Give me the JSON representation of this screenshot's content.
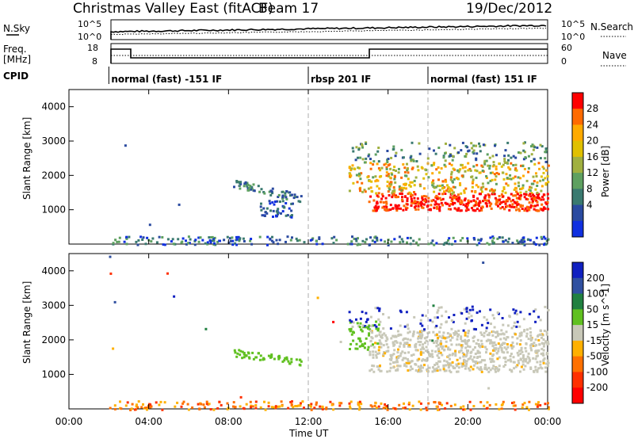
{
  "header": {
    "station": "Christmas Valley East (fitACF)",
    "beam": "Beam 17",
    "date": "19/Dec/2012"
  },
  "left_labels": {
    "nsky": "N.Sky",
    "freq_line1": "Freq.",
    "freq_line2": "[MHz]",
    "cpid": "CPID"
  },
  "right_labels": {
    "nsearch": "N.Search",
    "nave": "Nave"
  },
  "noise_panel": {
    "y_ticks_left": [
      "10^5",
      "10^0"
    ],
    "y_ticks_right": [
      "10^5",
      "10^0"
    ]
  },
  "freq_panel": {
    "y_ticks_left": [
      "18",
      "8"
    ],
    "y_ticks_right": [
      "60",
      "0"
    ]
  },
  "cpid_segments": [
    {
      "label": "normal (fast) -151 IF",
      "start_hour": 2.0
    },
    {
      "label": "rbsp 201 IF",
      "start_hour": 12.0
    },
    {
      "label": "normal (fast) 151 IF",
      "start_hour": 18.0
    }
  ],
  "chart_data": [
    {
      "type": "heatmap",
      "panel": "power",
      "ylabel": "Slant Range [km]",
      "yticks": [
        "1000",
        "2000",
        "3000",
        "4000"
      ],
      "colorbar_label": "Power [dB]",
      "colorbar_ticks": [
        "28",
        "24",
        "20",
        "16",
        "12",
        "8",
        "4"
      ],
      "colorbar_colors": [
        "#ff0000",
        "#ff6a00",
        "#ffaa00",
        "#e0c000",
        "#a0b040",
        "#5ea060",
        "#3a7a70",
        "#2a4aa0",
        "#1030e0"
      ]
    },
    {
      "type": "heatmap",
      "panel": "velocity",
      "ylabel": "Slant Range [km]",
      "yticks": [
        "1000",
        "2000",
        "3000",
        "4000"
      ],
      "colorbar_label": "Velocity [m s^-1]",
      "colorbar_ticks": [
        "200",
        "100",
        "50",
        "15",
        "-15",
        "-50",
        "-100",
        "-200"
      ],
      "colorbar_colors": [
        "#1020c0",
        "#3050a0",
        "#208040",
        "#60c020",
        "#c8c8b8",
        "#ffb000",
        "#ff7000",
        "#ff3000",
        "#ff0000"
      ]
    }
  ],
  "x_axis": {
    "label": "Time UT",
    "ticks": [
      "00:00",
      "04:00",
      "08:00",
      "12:00",
      "16:00",
      "20:00",
      "00:00"
    ]
  }
}
